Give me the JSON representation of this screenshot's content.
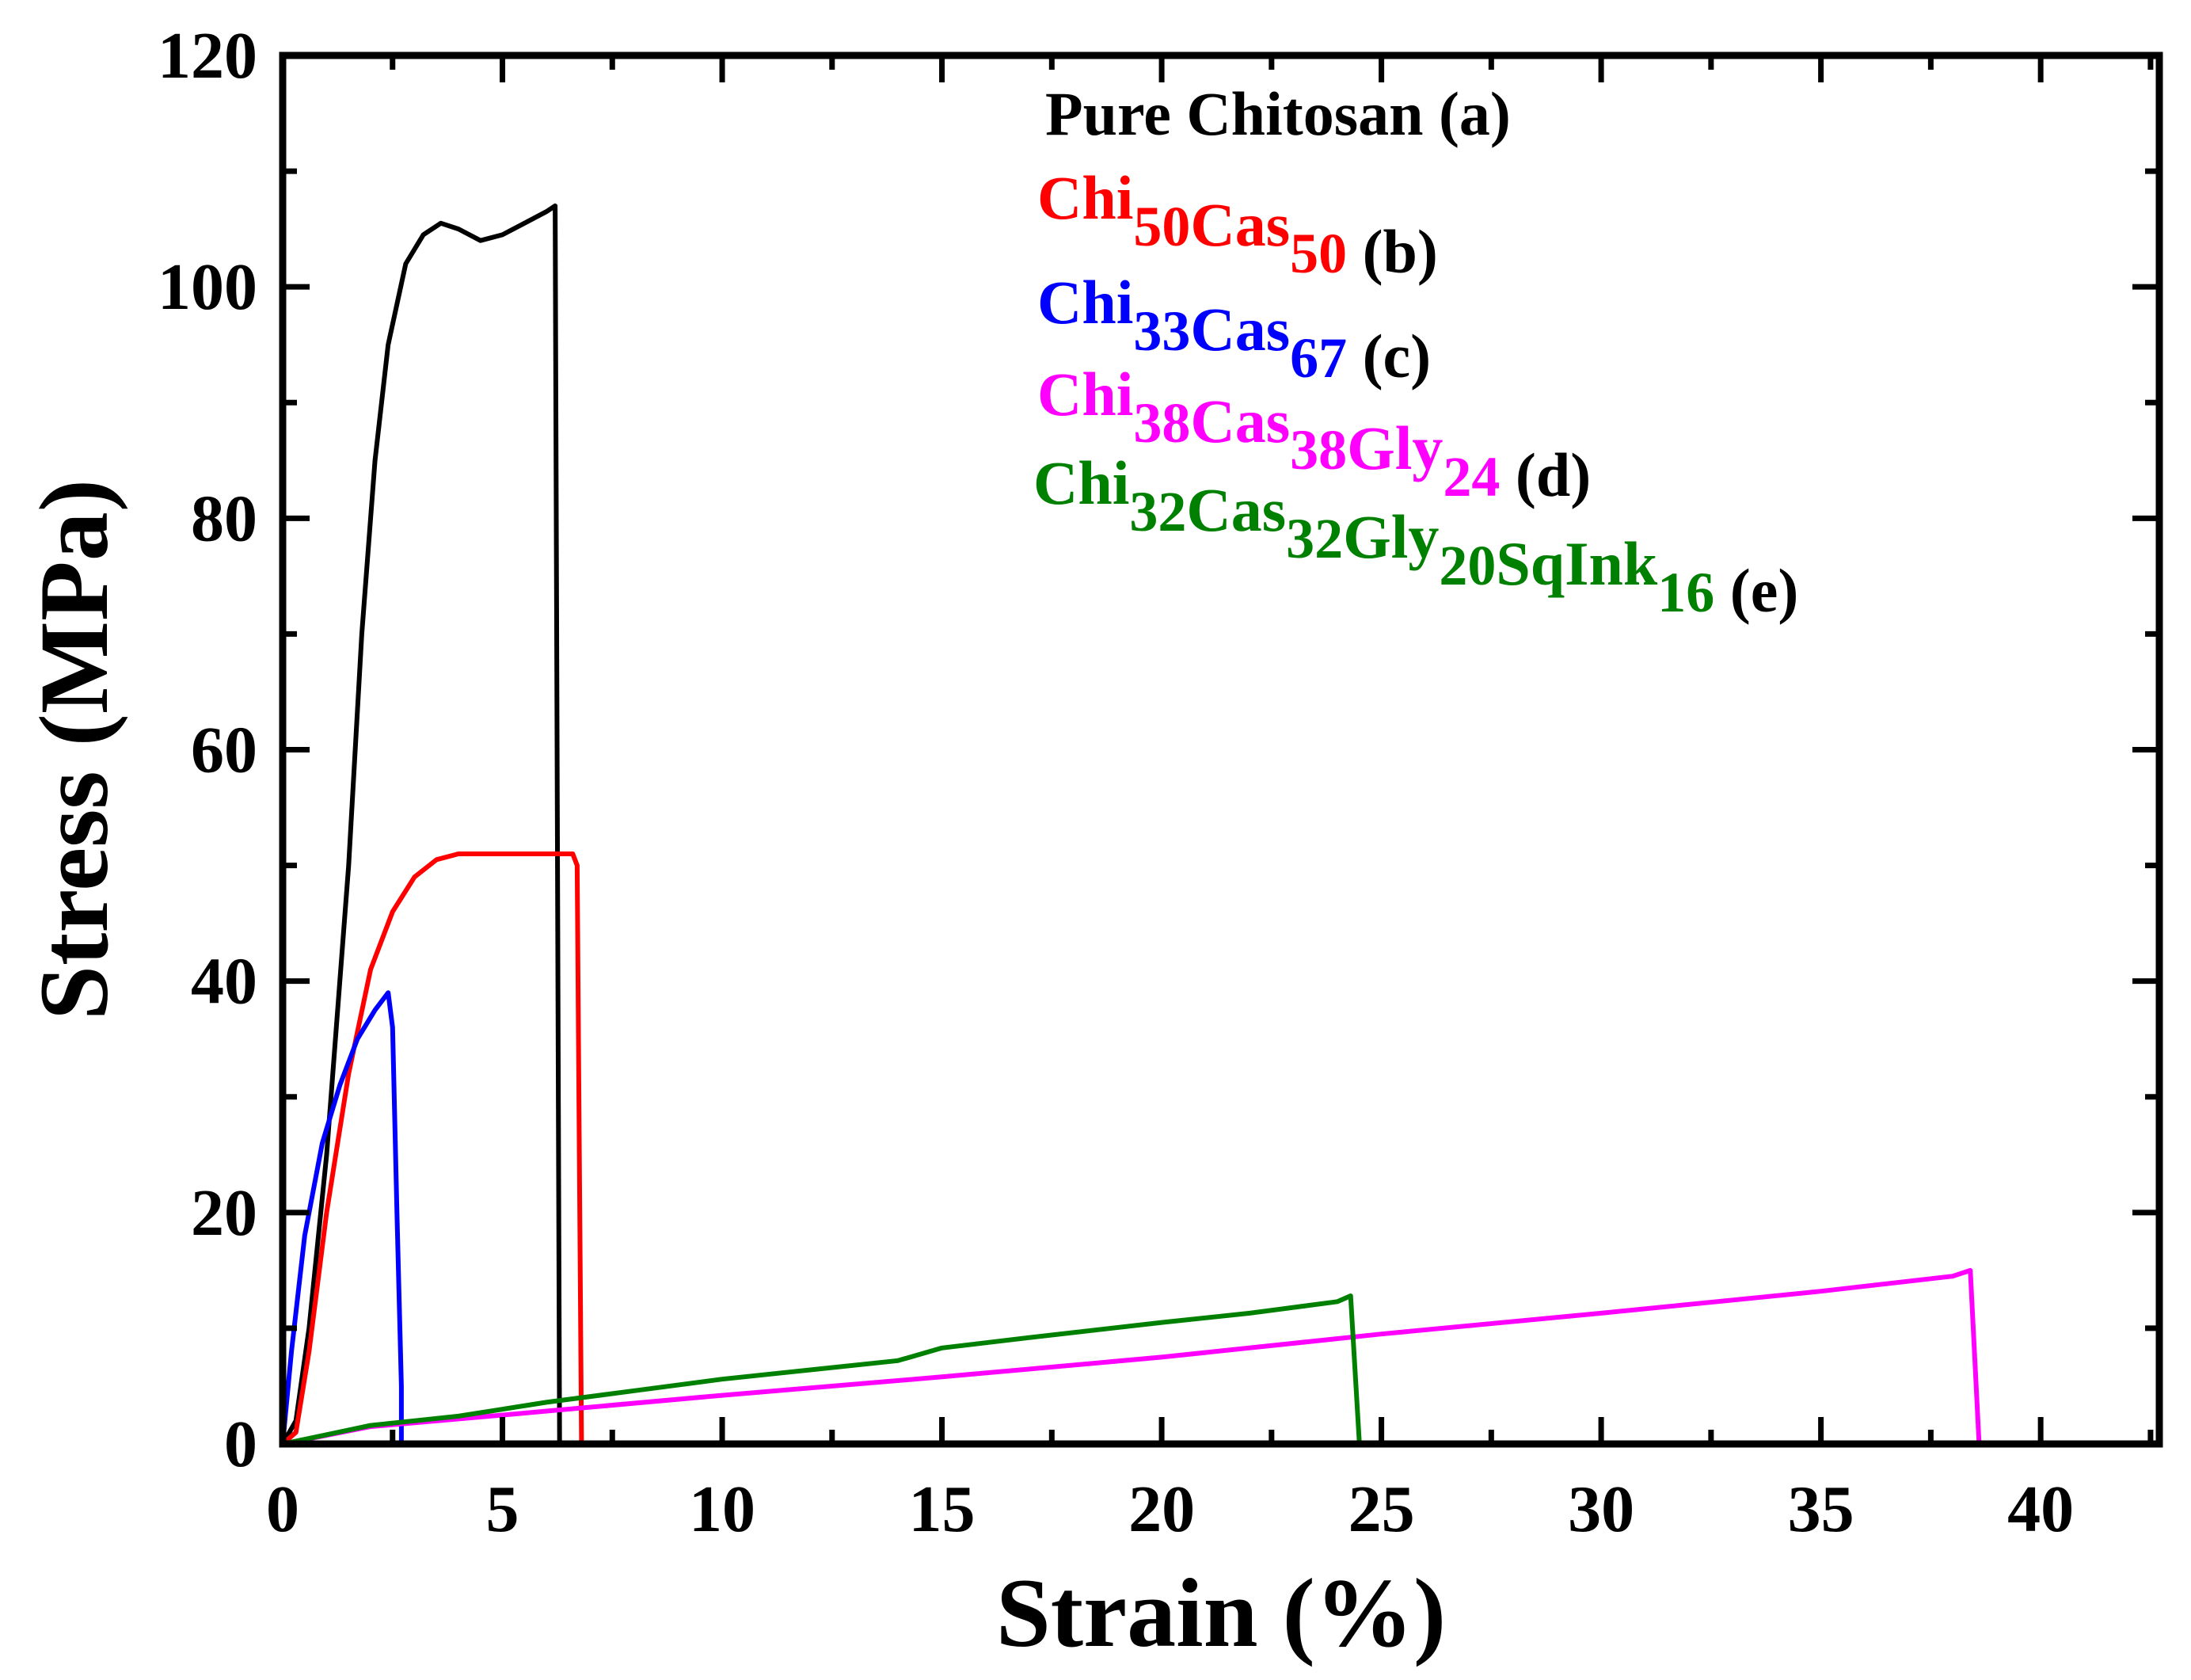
{
  "chart_data": {
    "type": "line",
    "xlabel": "Strain (%)",
    "ylabel": "Stress (MPa)",
    "xlim": [
      0,
      42.7
    ],
    "ylim": [
      0,
      120
    ],
    "xticks": [
      "0",
      "5",
      "10",
      "15",
      "20",
      "25",
      "30",
      "35",
      "40"
    ],
    "yticks": [
      "0",
      "20",
      "40",
      "60",
      "80",
      "100",
      "120"
    ],
    "grid": false,
    "legend_position": "top-right",
    "series": [
      {
        "name": "Pure Chitosan (a)",
        "legend": [
          {
            "text": "Pure Chitosan",
            "sub": false
          },
          {
            "text": " (a)",
            "sub": false
          }
        ],
        "color": "#000000",
        "label_color": "#000000",
        "points": [
          [
            0,
            0
          ],
          [
            0.3,
            2
          ],
          [
            0.6,
            10
          ],
          [
            1,
            25
          ],
          [
            1.5,
            50
          ],
          [
            1.8,
            70
          ],
          [
            2.1,
            85
          ],
          [
            2.4,
            95
          ],
          [
            2.8,
            102
          ],
          [
            3.2,
            104.5
          ],
          [
            3.6,
            105.5
          ],
          [
            4.0,
            105
          ],
          [
            4.5,
            104
          ],
          [
            5.0,
            104.5
          ],
          [
            5.5,
            105.5
          ],
          [
            6.0,
            106.5
          ],
          [
            6.2,
            107
          ],
          [
            6.3,
            0
          ]
        ]
      },
      {
        "name": "Chi50Cas50 (b)",
        "legend": [
          {
            "text": "Chi",
            "sub": false
          },
          {
            "text": "50",
            "sub": true
          },
          {
            "text": "Cas",
            "sub": false
          },
          {
            "text": "50",
            "sub": true
          },
          {
            "text": " (b)",
            "sub": false,
            "color": "#000000"
          }
        ],
        "color": "#ff0000",
        "label_color": "#ff0000",
        "points": [
          [
            0,
            0
          ],
          [
            0.3,
            1
          ],
          [
            0.6,
            8
          ],
          [
            1,
            20
          ],
          [
            1.5,
            32
          ],
          [
            2,
            41
          ],
          [
            2.5,
            46
          ],
          [
            3,
            49
          ],
          [
            3.5,
            50.5
          ],
          [
            4,
            51
          ],
          [
            5,
            51
          ],
          [
            6,
            51
          ],
          [
            6.6,
            51
          ],
          [
            6.7,
            50
          ],
          [
            6.8,
            0
          ]
        ]
      },
      {
        "name": "Chi33Cas67 (c)",
        "legend": [
          {
            "text": "Chi",
            "sub": false
          },
          {
            "text": "33",
            "sub": true
          },
          {
            "text": "Cas",
            "sub": false
          },
          {
            "text": "67",
            "sub": true
          },
          {
            "text": " (c)",
            "sub": false,
            "color": "#000000"
          }
        ],
        "color": "#0000ff",
        "label_color": "#0000ff",
        "points": [
          [
            0,
            0
          ],
          [
            0.2,
            8
          ],
          [
            0.5,
            18
          ],
          [
            0.9,
            26
          ],
          [
            1.3,
            31
          ],
          [
            1.7,
            35
          ],
          [
            2.1,
            37.5
          ],
          [
            2.4,
            39
          ],
          [
            2.5,
            36
          ],
          [
            2.6,
            20
          ],
          [
            2.7,
            5
          ],
          [
            2.7,
            0
          ]
        ]
      },
      {
        "name": "Chi38Cas38Gly24 (d)",
        "legend": [
          {
            "text": "Chi",
            "sub": false
          },
          {
            "text": "38",
            "sub": true
          },
          {
            "text": "Cas",
            "sub": false
          },
          {
            "text": "38",
            "sub": true
          },
          {
            "text": "Gly",
            "sub": false
          },
          {
            "text": "24",
            "sub": true
          },
          {
            "text": " (d)",
            "sub": false,
            "color": "#000000"
          }
        ],
        "color": "#ff00ff",
        "label_color": "#ff00ff",
        "points": [
          [
            0,
            0
          ],
          [
            2,
            1.5
          ],
          [
            5,
            2.5
          ],
          [
            10,
            4.2
          ],
          [
            15,
            5.8
          ],
          [
            20,
            7.5
          ],
          [
            25,
            9.5
          ],
          [
            30,
            11.3
          ],
          [
            35,
            13.2
          ],
          [
            38,
            14.5
          ],
          [
            38.4,
            15
          ],
          [
            38.6,
            0
          ]
        ]
      },
      {
        "name": "Chi32Cas32Gly20SqInk16 (e)",
        "legend": [
          {
            "text": "Chi",
            "sub": false
          },
          {
            "text": "32",
            "sub": true
          },
          {
            "text": "Cas",
            "sub": false
          },
          {
            "text": "32",
            "sub": true
          },
          {
            "text": "Gly",
            "sub": false
          },
          {
            "text": "20",
            "sub": true
          },
          {
            "text": "SqInk",
            "sub": false
          },
          {
            "text": "16",
            "sub": true
          },
          {
            "text": " (e)",
            "sub": false,
            "color": "#000000"
          }
        ],
        "color": "#008000",
        "label_color": "#008000",
        "points": [
          [
            0,
            0
          ],
          [
            1,
            0.8
          ],
          [
            2,
            1.6
          ],
          [
            4,
            2.4
          ],
          [
            6,
            3.6
          ],
          [
            8,
            4.6
          ],
          [
            10,
            5.6
          ],
          [
            12,
            6.4
          ],
          [
            14,
            7.2
          ],
          [
            15,
            8.3
          ],
          [
            17,
            9.2
          ],
          [
            20,
            10.5
          ],
          [
            22,
            11.3
          ],
          [
            24,
            12.3
          ],
          [
            24.3,
            12.8
          ],
          [
            24.5,
            0
          ]
        ]
      }
    ]
  }
}
